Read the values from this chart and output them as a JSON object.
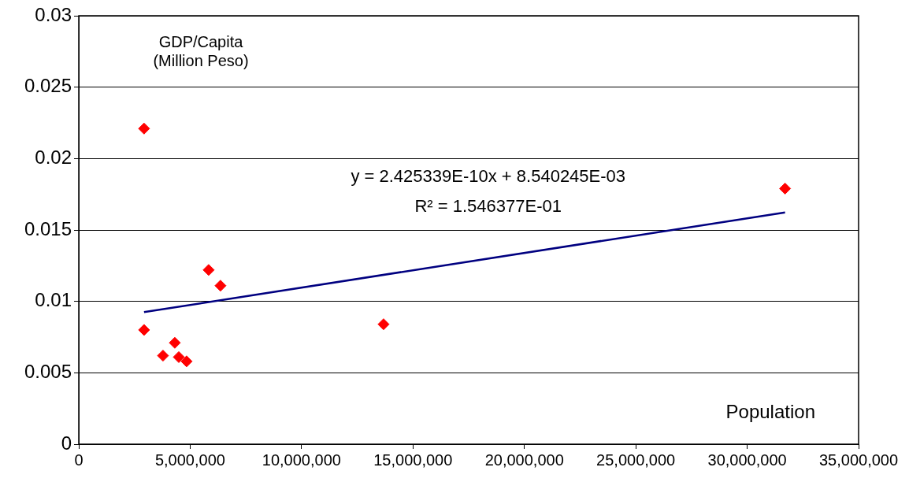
{
  "chart_data": {
    "type": "scatter",
    "xlabel": "Population",
    "ylabel": "GDP/Capita\n(Million Peso)",
    "series": [
      {
        "color": "#ff0000",
        "x": [
          2930000,
          2930000,
          3780000,
          4310000,
          4490000,
          4840000,
          5830000,
          6360000,
          13680000,
          31700000
        ],
        "values": [
          0.0221,
          0.008,
          0.0062,
          0.0071,
          0.0061,
          0.0058,
          0.0122,
          0.0111,
          0.0084,
          0.0179
        ]
      },
      {
        "type": "line",
        "marker": "none",
        "color": "#000080",
        "x": [
          2930000,
          31700000
        ],
        "values": [
          0.00925,
          0.01623
        ]
      }
    ],
    "xlim": [
      0,
      35000000
    ],
    "xticks": [
      0,
      {
        "value": 5000000,
        "label": "5,000,000"
      },
      {
        "value": 10000000,
        "label": "10,000,000"
      },
      {
        "value": 15000000,
        "label": "15,000,000"
      },
      {
        "value": 20000000,
        "label": "20,000,000"
      },
      {
        "value": 25000000,
        "label": "25,000,000"
      },
      {
        "value": 30000000,
        "label": "30,000,000"
      },
      {
        "value": 35000000,
        "label": "35,000,000"
      }
    ],
    "ylim": [
      0,
      0.03
    ],
    "yticks": [
      0,
      0.005,
      0.01,
      0.015,
      0.02,
      0.025,
      0.03
    ],
    "grid": "y",
    "legend": false,
    "marker": "diamond",
    "line_style": "solid",
    "annotations": [
      "y = 2.425339E-10x + 8.540245E-03",
      "R² = 1.546377E-01"
    ]
  }
}
